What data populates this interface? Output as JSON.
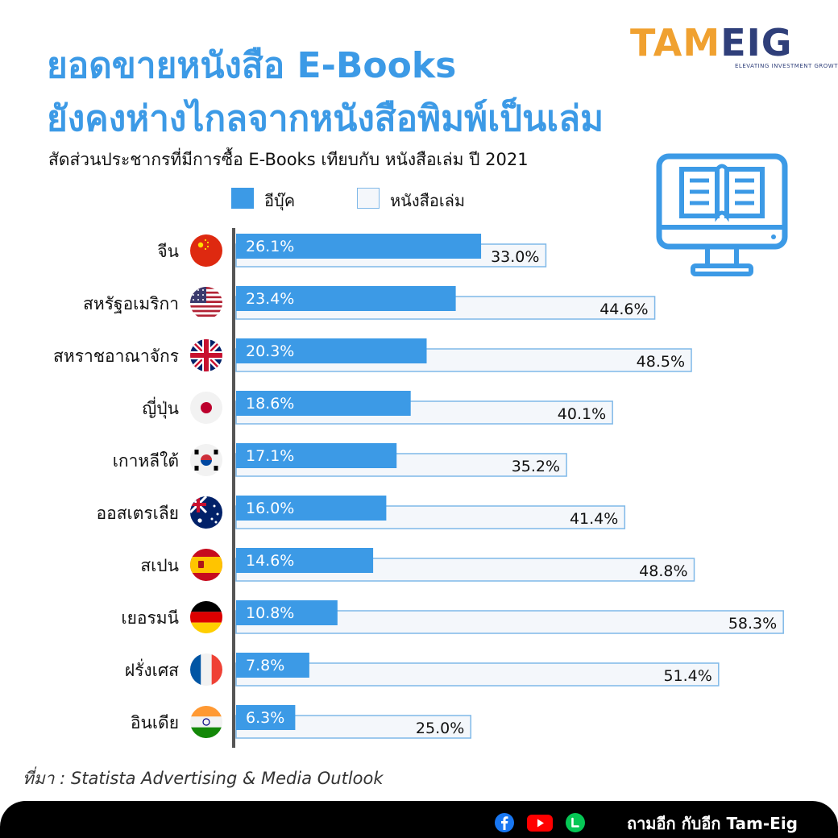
{
  "title_line1": "ยอดขายหนังสือ E-Books",
  "title_line2": "ยังคงห่างไกลจากหนังสือพิมพ์เป็นเล่ม",
  "logo": {
    "brand_part1": "TAM",
    "brand_part2": "EIG",
    "tagline": "ELEVATING INVESTMENT GROWTH"
  },
  "colors": {
    "accent": "#3c9ae6",
    "ebook": "#3c9ae6",
    "print_fill": "#f4f7fb",
    "print_border": "#7fb8e8",
    "logo_orange": "#f0a130",
    "logo_navy": "#2f3f7a"
  },
  "chart_data": {
    "type": "bar",
    "orientation": "horizontal",
    "title": "สัดส่วนประชากรที่มีการซื้อ E-Books เทียบกับ หนังสือเล่ม ปี 2021",
    "categories": [
      "จีน",
      "สหรัฐอเมริกา",
      "สหราชอาณาจักร",
      "ญี่ปุ่น",
      "เกาหลีใต้",
      "ออสเตรเลีย",
      "สเปน",
      "เยอรมนี",
      "ฝรั่งเศส",
      "อินเดีย"
    ],
    "flags": [
      "china",
      "usa",
      "uk",
      "japan",
      "south-korea",
      "australia",
      "spain",
      "germany",
      "france",
      "india"
    ],
    "series": [
      {
        "name": "อีบุ๊ค",
        "values": [
          26.1,
          23.4,
          20.3,
          18.6,
          17.1,
          16.0,
          14.6,
          10.8,
          7.8,
          6.3
        ],
        "labels": [
          "26.1%",
          "23.4%",
          "20.3%",
          "18.6%",
          "17.1%",
          "16.0%",
          "14.6%",
          "10.8%",
          "7.8%",
          "6.3%"
        ]
      },
      {
        "name": "หนังสือเล่ม",
        "values": [
          33.0,
          44.6,
          48.5,
          40.1,
          35.2,
          41.4,
          48.8,
          58.3,
          51.4,
          25.0
        ],
        "labels": [
          "33.0%",
          "44.6%",
          "48.5%",
          "40.1%",
          "35.2%",
          "41.4%",
          "48.8%",
          "58.3%",
          "51.4%",
          "25.0%"
        ]
      }
    ],
    "legend_position": "top",
    "grid": false
  },
  "source": "ที่มา : Statista Advertising & Media Outlook",
  "footer": {
    "text": "ถามอีก กับอีก Tam-Eig",
    "icons": [
      "facebook-icon",
      "youtube-icon",
      "line-icon"
    ]
  }
}
